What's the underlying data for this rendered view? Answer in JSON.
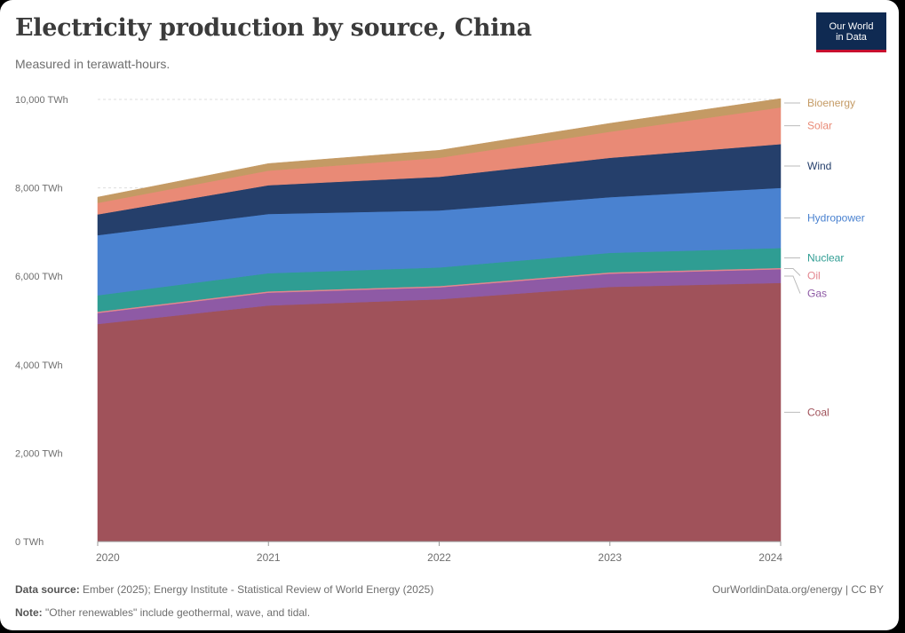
{
  "title": "Electricity production by source, China",
  "subtitle": "Measured in terawatt-hours.",
  "logo": {
    "line1": "Our World",
    "line2": "in Data"
  },
  "footer": {
    "source_label": "Data source:",
    "source_text": "Ember (2025); Energy Institute - Statistical Review of World Energy (2025)",
    "note_label": "Note:",
    "note_text": "\"Other renewables\" include geothermal, wave, and tidal.",
    "credit": "OurWorldinData.org/energy | CC BY"
  },
  "chart_data": {
    "type": "area",
    "stacked": true,
    "title": "Electricity production by source, China",
    "subtitle": "Measured in terawatt-hours.",
    "x": [
      "2020",
      "2021",
      "2022",
      "2023",
      "2024"
    ],
    "ylim": [
      0,
      10000
    ],
    "yticks": [
      0,
      2000,
      4000,
      6000,
      8000,
      10000
    ],
    "ytick_labels": [
      "0 TWh",
      "2,000 TWh",
      "4,000 TWh",
      "6,000 TWh",
      "8,000 TWh",
      "10,000 TWh"
    ],
    "grid": true,
    "legend_placement": "right (inline labels)",
    "series": [
      {
        "name": "Coal",
        "color": "#a0525a",
        "values": [
          4920,
          5340,
          5480,
          5760,
          5850
        ]
      },
      {
        "name": "Gas",
        "color": "#8e5aa5",
        "values": [
          250,
          290,
          270,
          300,
          310
        ]
      },
      {
        "name": "Oil",
        "color": "#e3868f",
        "values": [
          30,
          30,
          30,
          30,
          30
        ]
      },
      {
        "name": "Nuclear",
        "color": "#2f9d93",
        "values": [
          370,
          410,
          420,
          440,
          450
        ]
      },
      {
        "name": "Hydropower",
        "color": "#4a82d0",
        "values": [
          1360,
          1340,
          1290,
          1260,
          1360
        ]
      },
      {
        "name": "Wind",
        "color": "#253f6b",
        "values": [
          470,
          650,
          760,
          890,
          990
        ]
      },
      {
        "name": "Solar",
        "color": "#e98a76",
        "values": [
          260,
          330,
          430,
          590,
          830
        ]
      },
      {
        "name": "Bioenergy",
        "color": "#c49a64",
        "values": [
          130,
          160,
          170,
          190,
          200
        ]
      }
    ]
  }
}
